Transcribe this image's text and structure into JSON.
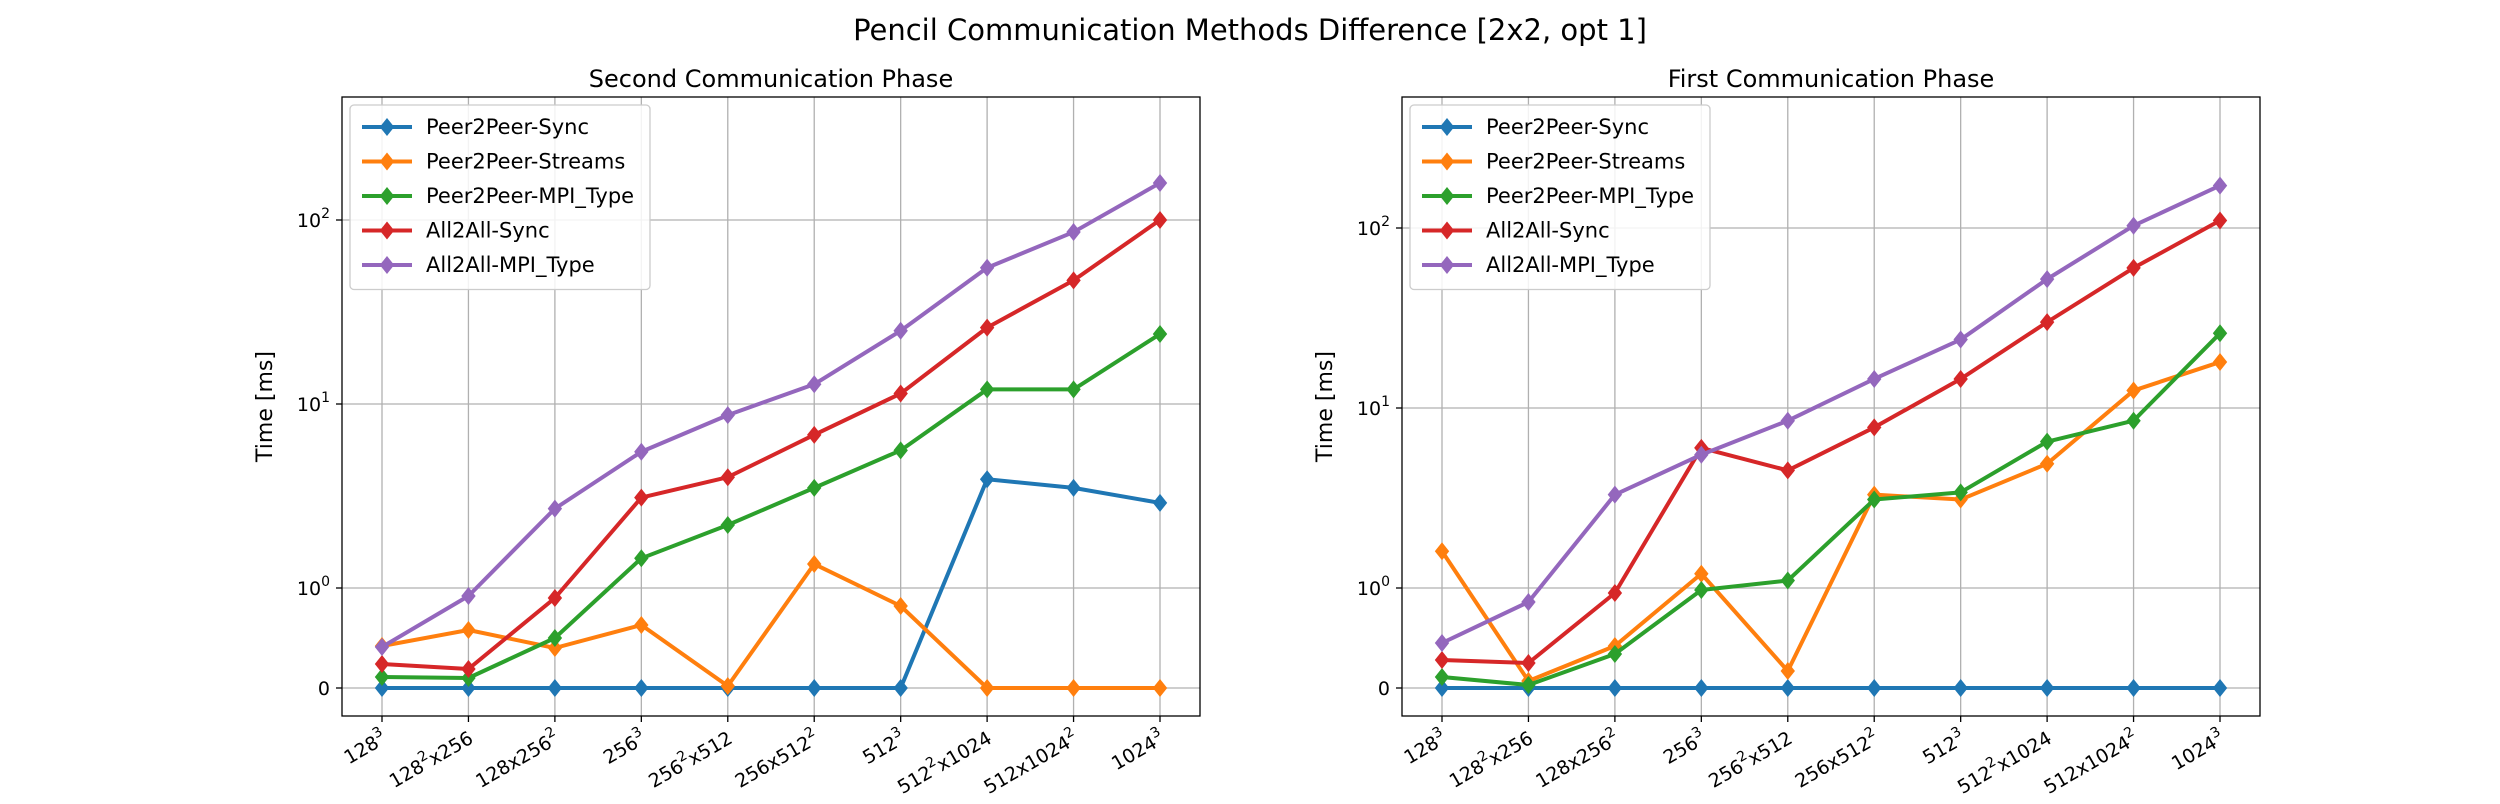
{
  "figure_title": "Pencil Communication Methods Difference [2x2, opt 1]",
  "colors": {
    "Peer2Peer-Sync": "#1f77b4",
    "Peer2Peer-Streams": "#ff7f0e",
    "Peer2Peer-MPI_Type": "#2ca02c",
    "All2All-Sync": "#d62728",
    "All2All-MPI_Type": "#9467bd"
  },
  "chart_data": [
    {
      "type": "line",
      "title": "Second Communication Phase",
      "ylabel": "Time [ms]",
      "xlabel": "",
      "yscale": "symlog",
      "yticks": [
        "0",
        "10^0",
        "10^1",
        "10^2"
      ],
      "grid": true,
      "legend_position": "top-left",
      "marker": "diamond",
      "categories": [
        "128^3",
        "128^2x256",
        "128x256^2",
        "256^3",
        "256^2x512",
        "256x512^2",
        "512^3",
        "512^2x1024",
        "512x1024^2",
        "1024^3"
      ],
      "series": [
        {
          "name": "Peer2Peer-Sync",
          "values": [
            0,
            0,
            0,
            0,
            0,
            0,
            0,
            3.9,
            3.5,
            2.9
          ]
        },
        {
          "name": "Peer2Peer-Streams",
          "values": [
            0.42,
            0.58,
            0.4,
            0.63,
            0.02,
            1.35,
            0.82,
            0,
            0,
            0
          ]
        },
        {
          "name": "Peer2Peer-MPI_Type",
          "values": [
            0.11,
            0.1,
            0.5,
            1.45,
            2.2,
            3.5,
            5.6,
            12,
            12,
            24
          ]
        },
        {
          "name": "All2All-Sync",
          "values": [
            0.24,
            0.19,
            0.9,
            3.1,
            4.0,
            6.8,
            11.4,
            26,
            47,
            100
          ]
        },
        {
          "name": "All2All-MPI_Type",
          "values": [
            0.41,
            0.92,
            2.7,
            5.5,
            8.7,
            12.8,
            25,
            55,
            86,
            159
          ]
        }
      ]
    },
    {
      "type": "line",
      "title": "First Communication Phase",
      "ylabel": "Time [ms]",
      "xlabel": "",
      "yscale": "symlog",
      "yticks": [
        "0",
        "10^0",
        "10^1",
        "10^2"
      ],
      "grid": true,
      "legend_position": "top-left",
      "marker": "diamond",
      "categories": [
        "128^3",
        "128^2x256",
        "128x256^2",
        "256^3",
        "256^2x512",
        "256x512^2",
        "512^3",
        "512^2x1024",
        "512x1024^2",
        "1024^3"
      ],
      "series": [
        {
          "name": "Peer2Peer-Sync",
          "values": [
            0,
            0,
            0,
            0,
            0,
            0,
            0,
            0,
            0,
            0
          ]
        },
        {
          "name": "Peer2Peer-Streams",
          "values": [
            1.6,
            0.07,
            0.42,
            1.2,
            0.17,
            3.3,
            3.1,
            4.9,
            12.5,
            18
          ]
        },
        {
          "name": "Peer2Peer-MPI_Type",
          "values": [
            0.11,
            0.03,
            0.34,
            0.98,
            1.1,
            3.1,
            3.4,
            6.5,
            8.5,
            26
          ]
        },
        {
          "name": "All2All-Sync",
          "values": [
            0.28,
            0.25,
            0.95,
            6.0,
            4.5,
            7.8,
            14.5,
            30,
            60,
            110
          ]
        },
        {
          "name": "All2All-MPI_Type",
          "values": [
            0.45,
            0.86,
            3.3,
            5.5,
            8.5,
            14.5,
            24,
            52,
            103,
            172
          ]
        }
      ]
    }
  ]
}
